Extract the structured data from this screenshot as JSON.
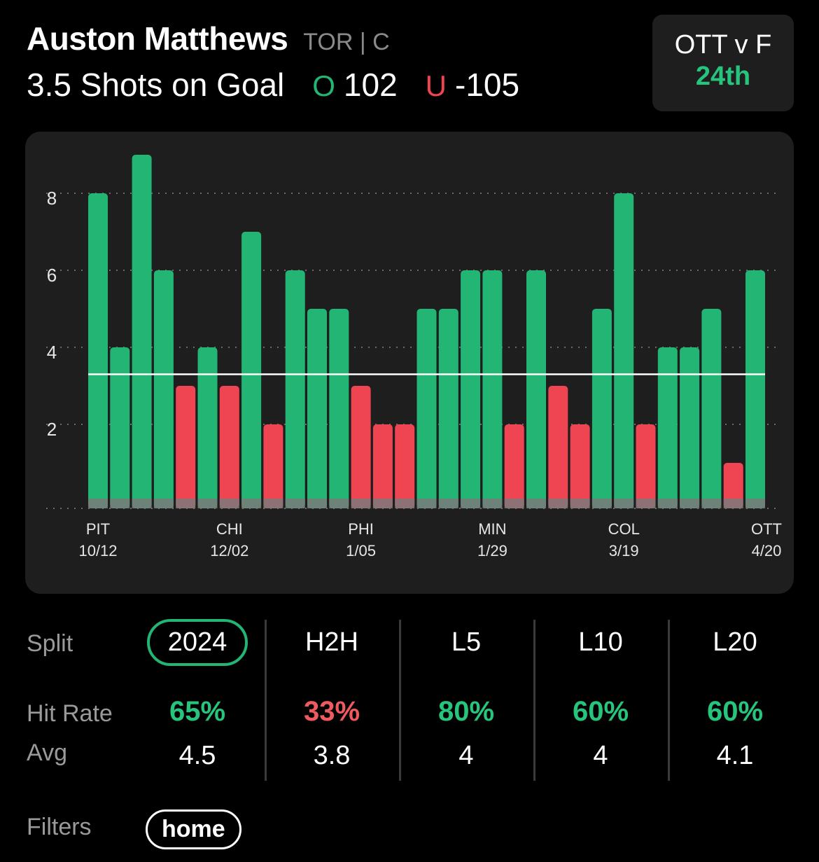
{
  "player": {
    "name": "Auston Matthews",
    "team_pos": "TOR | C"
  },
  "prop": {
    "label": "3.5 Shots on Goal",
    "over_letter": "O",
    "over_odds": "102",
    "under_letter": "U",
    "under_odds": "-105"
  },
  "matchup": {
    "title": "OTT v F",
    "rank": "24th"
  },
  "colors": {
    "over": "#22b574",
    "under": "#ef4451",
    "card": "#1e1e1e"
  },
  "chart_data": {
    "type": "bar",
    "values": [
      8,
      4,
      9,
      6,
      3,
      4,
      3,
      7,
      2,
      6,
      5,
      5,
      3,
      2,
      2,
      5,
      5,
      6,
      6,
      2,
      6,
      3,
      2,
      5,
      8,
      2,
      4,
      4,
      5,
      1,
      6
    ],
    "line": 3.5,
    "ylim": [
      0,
      9
    ],
    "yticks": [
      "2",
      "4",
      "6",
      "8"
    ],
    "ytick_values": [
      2,
      4,
      6,
      8
    ],
    "xlabels": [
      {
        "team": "PIT",
        "date": "10/12"
      },
      {
        "team": "CHI",
        "date": "12/02"
      },
      {
        "team": "PHI",
        "date": "1/05"
      },
      {
        "team": "MIN",
        "date": "1/29"
      },
      {
        "team": "COL",
        "date": "3/19"
      },
      {
        "team": "OTT",
        "date": "4/20"
      }
    ],
    "xlabel_indices": [
      0,
      6,
      12,
      18,
      24,
      30
    ],
    "grid": "dotted"
  },
  "splits": {
    "row_labels": {
      "split": "Split",
      "hit": "Hit Rate",
      "avg": "Avg"
    },
    "columns": [
      {
        "name": "2024",
        "hit": "65%",
        "avg": "4.5",
        "selected": true,
        "hit_color": "green"
      },
      {
        "name": "H2H",
        "hit": "33%",
        "avg": "3.8",
        "selected": false,
        "hit_color": "red"
      },
      {
        "name": "L5",
        "hit": "80%",
        "avg": "4",
        "selected": false,
        "hit_color": "green"
      },
      {
        "name": "L10",
        "hit": "60%",
        "avg": "4",
        "selected": false,
        "hit_color": "green"
      },
      {
        "name": "L20",
        "hit": "60%",
        "avg": "4.1",
        "selected": false,
        "hit_color": "green"
      }
    ]
  },
  "filters": {
    "label": "Filters",
    "items": [
      "home"
    ]
  }
}
